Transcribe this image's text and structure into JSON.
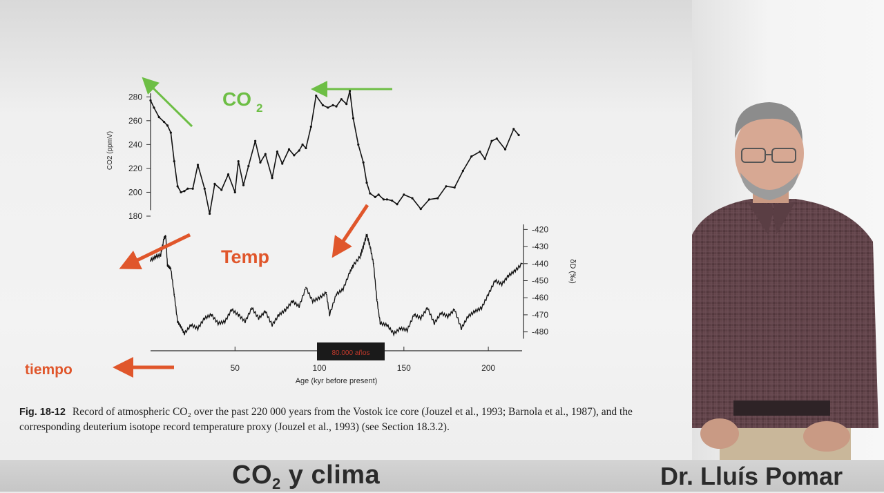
{
  "slide": {
    "annotations": {
      "co2_label": "CO",
      "co2_sub": "2",
      "temp_label": "Temp",
      "time_label": "tiempo",
      "highlight_box": "80.000 años"
    },
    "caption": {
      "fig": "Fig. 18-12",
      "text": "Record of atmospheric CO₂ over the past 220 000 years from the Vostok ice core (Jouzel et al., 1993; Barnola et al., 1987), and the corresponding deuterium isotope record temperature proxy (Jouzel et al., 1993) (see Section 18.3.2)."
    }
  },
  "colors": {
    "annotation_green": "#6dbe45",
    "annotation_red": "#e0562b",
    "series": "#111111",
    "highlight_bg": "#1a1a1a",
    "highlight_text": "#c0392b"
  },
  "chart_data": [
    {
      "type": "line",
      "title": "",
      "xlabel": "Age (kyr before present)",
      "ylabel": "CO2 (ppmV)",
      "xlim": [
        0,
        220
      ],
      "ylim": [
        180,
        290
      ],
      "x_ticks": [
        50,
        100,
        150,
        200
      ],
      "y_ticks": [
        180,
        200,
        220,
        240,
        260,
        280
      ],
      "series": [
        {
          "x": [
            0,
            2,
            5,
            8,
            10,
            12,
            14,
            16,
            18,
            20,
            22,
            25,
            28,
            32,
            35,
            38,
            42,
            46,
            50,
            52,
            55,
            58,
            62,
            65,
            68,
            72,
            75,
            78,
            82,
            85,
            88,
            90,
            92,
            95,
            98,
            102,
            105,
            108,
            110,
            113,
            116,
            118,
            120,
            123,
            126,
            128,
            130,
            133,
            135,
            138,
            140,
            143,
            146,
            150,
            155,
            160,
            165,
            170,
            175,
            180,
            185,
            190,
            195,
            198,
            202,
            205,
            210,
            215,
            218
          ],
          "y": [
            277,
            271,
            263,
            259,
            256,
            250,
            226,
            205,
            200,
            201,
            203,
            203,
            223,
            203,
            182,
            207,
            202,
            215,
            200,
            226,
            206,
            222,
            243,
            225,
            232,
            212,
            234,
            224,
            236,
            231,
            235,
            240,
            237,
            255,
            281,
            273,
            271,
            273,
            272,
            278,
            274,
            285,
            262,
            240,
            225,
            208,
            199,
            196,
            198,
            194,
            194,
            193,
            190,
            198,
            195,
            186,
            194,
            195,
            205,
            204,
            218,
            230,
            234,
            228,
            243,
            245,
            236,
            253,
            248
          ]
        }
      ]
    },
    {
      "type": "line",
      "title": "",
      "xlabel": "Age (kyr before present)",
      "ylabel": "δD (‰)",
      "xlim": [
        0,
        220
      ],
      "ylim": [
        -485,
        -415
      ],
      "y_ticks": [
        -420,
        -430,
        -440,
        -450,
        -460,
        -470,
        -480
      ],
      "series": [
        {
          "x": [
            0,
            3,
            6,
            8,
            9,
            10,
            12,
            14,
            16,
            18,
            20,
            24,
            28,
            32,
            36,
            40,
            44,
            48,
            52,
            56,
            60,
            64,
            68,
            72,
            76,
            80,
            84,
            88,
            92,
            96,
            100,
            104,
            106,
            110,
            114,
            118,
            120,
            124,
            126,
            128,
            130,
            132,
            134,
            136,
            140,
            144,
            148,
            152,
            156,
            160,
            164,
            168,
            172,
            176,
            180,
            184,
            188,
            192,
            196,
            200,
            204,
            208,
            212,
            216,
            220
          ],
          "y": [
            -438,
            -436,
            -435,
            -425,
            -424,
            -441,
            -443,
            -458,
            -474,
            -477,
            -481,
            -476,
            -478,
            -472,
            -470,
            -475,
            -474,
            -467,
            -470,
            -474,
            -466,
            -472,
            -468,
            -476,
            -470,
            -467,
            -462,
            -465,
            -454,
            -462,
            -460,
            -457,
            -470,
            -458,
            -455,
            -445,
            -441,
            -436,
            -430,
            -423,
            -430,
            -440,
            -461,
            -475,
            -476,
            -481,
            -478,
            -479,
            -470,
            -472,
            -466,
            -475,
            -469,
            -471,
            -467,
            -478,
            -471,
            -468,
            -466,
            -458,
            -450,
            -452,
            -447,
            -444,
            -440
          ]
        }
      ]
    }
  ]
}
